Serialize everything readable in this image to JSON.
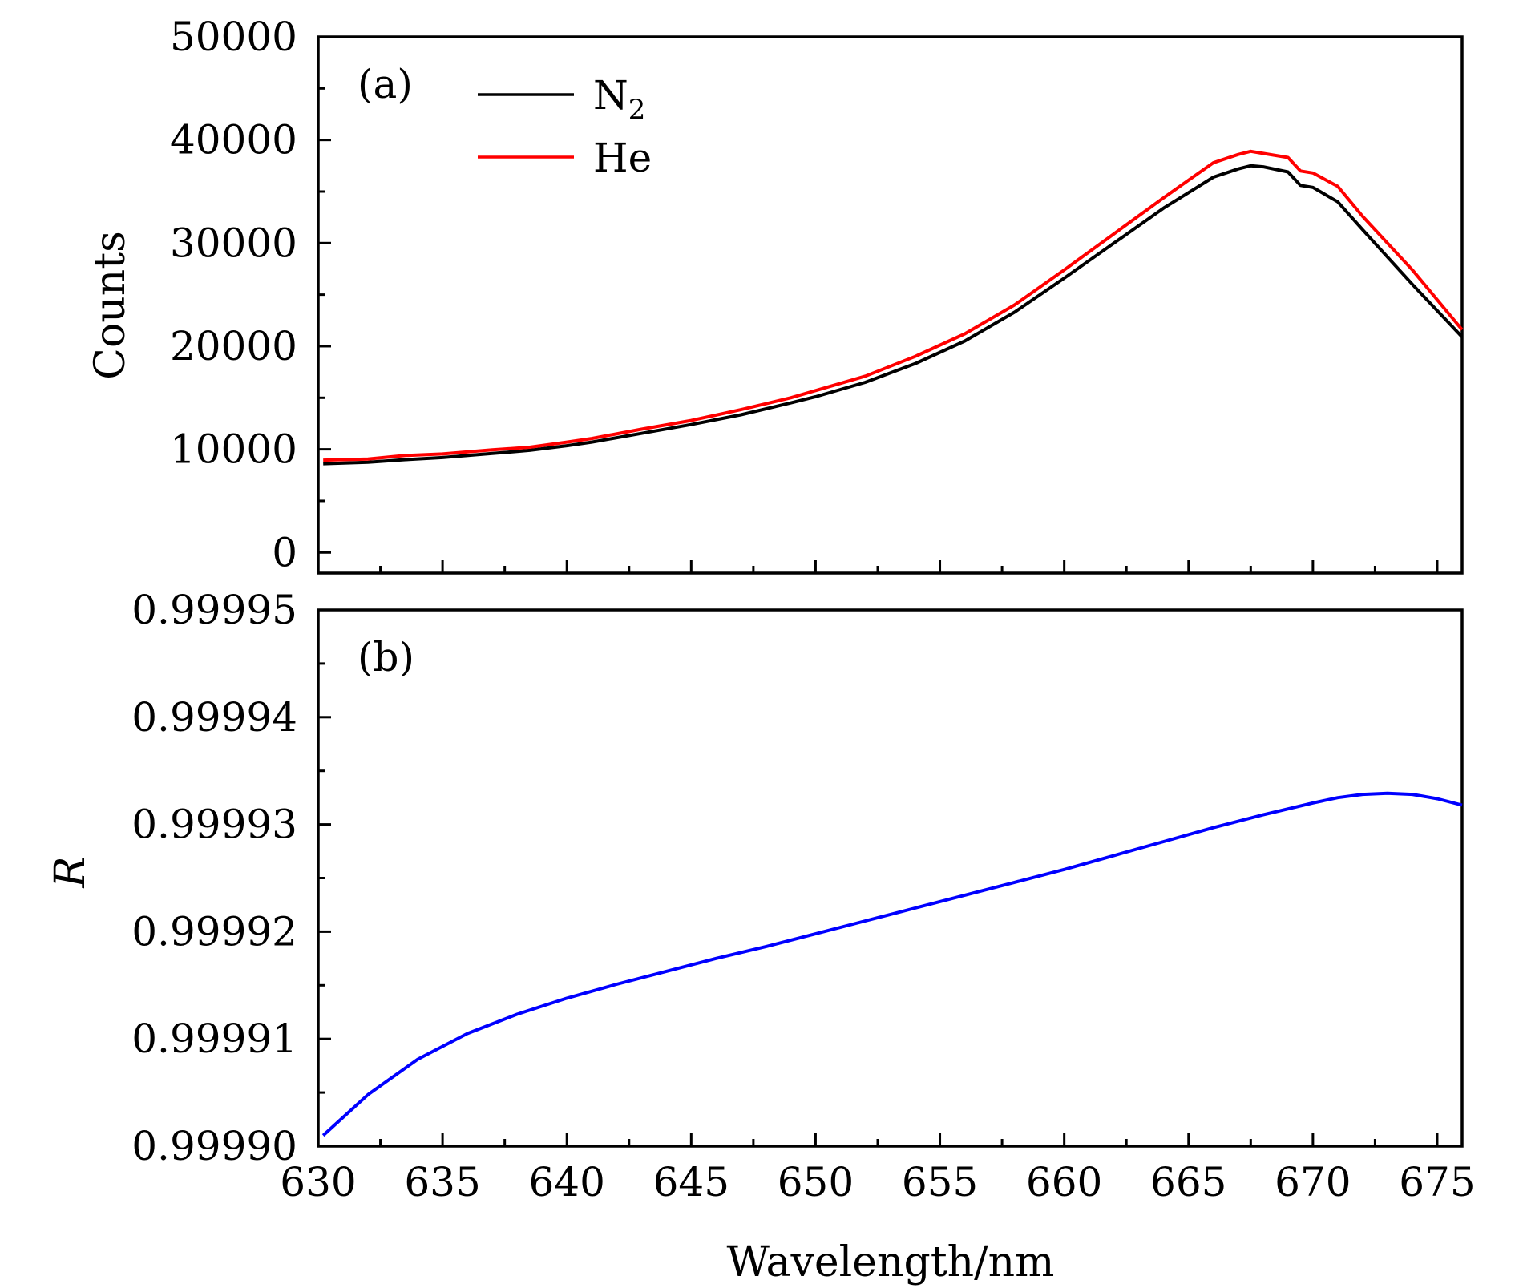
{
  "chart_data": [
    {
      "type": "line",
      "panel_label": "(a)",
      "xlabel": "",
      "ylabel": "Counts",
      "xlim": [
        630,
        676
      ],
      "ylim": [
        -2000,
        50000
      ],
      "x_ticks": [
        630,
        635,
        640,
        645,
        650,
        655,
        660,
        665,
        670,
        675
      ],
      "y_ticks": [
        0,
        10000,
        20000,
        30000,
        40000,
        50000
      ],
      "y_tick_labels": [
        "0",
        "10000",
        "20000",
        "30000",
        "40000",
        "50000"
      ],
      "grid": false,
      "legend_position": "top-left",
      "series": [
        {
          "name": "N2",
          "name_main": "N",
          "name_sub": "2",
          "color": "#000000",
          "x": [
            630.2,
            632,
            633.5,
            635,
            637,
            638.5,
            640,
            641,
            643,
            645,
            647,
            649,
            650,
            652,
            654,
            656,
            658,
            660,
            662,
            664,
            665,
            666,
            667,
            667.5,
            668,
            669,
            669.5,
            670,
            671,
            672,
            674,
            676
          ],
          "y": [
            8600,
            8750,
            9000,
            9200,
            9600,
            9900,
            10350,
            10700,
            11550,
            12400,
            13350,
            14500,
            15100,
            16500,
            18300,
            20500,
            23300,
            26600,
            30000,
            33400,
            34900,
            36400,
            37200,
            37500,
            37400,
            36900,
            35600,
            35400,
            34000,
            31300,
            26000,
            20900
          ]
        },
        {
          "name": "He",
          "color": "#ff0000",
          "x": [
            630.2,
            632,
            633.5,
            635,
            637,
            638.5,
            640,
            641,
            643,
            645,
            647,
            649,
            650,
            652,
            654,
            656,
            658,
            660,
            662,
            664,
            665,
            666,
            667,
            667.5,
            668,
            669,
            669.5,
            670,
            671,
            672,
            674,
            676
          ],
          "y": [
            8950,
            9050,
            9400,
            9550,
            9950,
            10200,
            10700,
            11050,
            11950,
            12800,
            13850,
            15000,
            15700,
            17100,
            19000,
            21200,
            24000,
            27400,
            30900,
            34400,
            36100,
            37800,
            38600,
            38900,
            38700,
            38300,
            37000,
            36800,
            35500,
            32600,
            27400,
            21600
          ]
        }
      ]
    },
    {
      "type": "line",
      "panel_label": "(b)",
      "xlabel": "Wavelength/nm",
      "ylabel": "R",
      "xlim": [
        630,
        676
      ],
      "ylim": [
        0.9999,
        0.99995
      ],
      "x_ticks": [
        630,
        635,
        640,
        645,
        650,
        655,
        660,
        665,
        670,
        675
      ],
      "x_tick_labels": [
        "630",
        "635",
        "640",
        "645",
        "650",
        "655",
        "660",
        "665",
        "670",
        "675"
      ],
      "y_ticks": [
        0.9999,
        0.99991,
        0.99992,
        0.99993,
        0.99994,
        0.99995
      ],
      "y_tick_labels": [
        "0.99990",
        "0.99991",
        "0.99992",
        "0.99993",
        "0.99994",
        "0.99995"
      ],
      "grid": false,
      "series": [
        {
          "color": "#0000ff",
          "x": [
            630.2,
            632,
            634,
            636,
            638,
            640,
            642,
            644,
            646,
            648,
            650,
            652,
            654,
            656,
            658,
            660,
            662,
            664,
            666,
            668,
            670,
            671,
            672,
            673,
            674,
            675,
            676
          ],
          "y": [
            0.999901,
            0.9999048,
            0.9999081,
            0.9999105,
            0.9999123,
            0.9999138,
            0.9999151,
            0.9999163,
            0.9999175,
            0.9999186,
            0.9999198,
            0.999921,
            0.9999222,
            0.9999234,
            0.9999246,
            0.9999258,
            0.9999271,
            0.9999284,
            0.9999297,
            0.9999309,
            0.999932,
            0.9999325,
            0.9999328,
            0.9999329,
            0.9999328,
            0.9999324,
            0.9999318
          ]
        }
      ]
    }
  ]
}
